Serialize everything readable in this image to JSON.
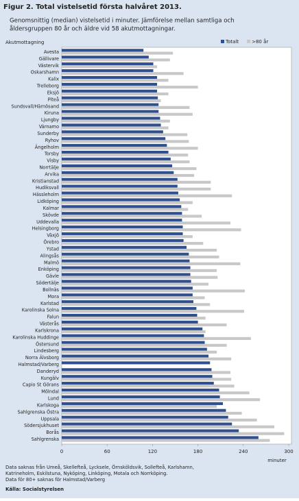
{
  "chart_data": {
    "type": "hbar",
    "title": "Figur 2. Total vistelsetid första halvåret 2013.",
    "subtitle": [
      "Genomsnittig (median) vistelsetid i minuter. Jämförelse mellan samtliga och",
      "åldersgruppen 80 år och äldre vid 58 akutmottagningar."
    ],
    "y_label": "Akutmottagning",
    "x_label": "minuter",
    "categories": [
      "Avesta",
      "Gällivare",
      "Västervik",
      "Oskarshamn",
      "Kalix",
      "Trelleborg",
      "Eksjö",
      "Piteå",
      "Sundsvall/Härnösand",
      "Kiruna",
      "Ljungby",
      "Värnamo",
      "Sunderby",
      "Ryhov",
      "Ängelholm",
      "Torsby",
      "Visby",
      "Norrtälje",
      "Arvika",
      "Kristianstad",
      "Hudiksvall",
      "Hässleholm",
      "Lidköping",
      "Kalmar",
      "Skövde",
      "Uddevalla",
      "Helsingborg",
      "Växjö",
      "Örebro",
      "Ystad",
      "Alingsås",
      "Malmö",
      "Enköping",
      "Gävle",
      "Södertälje",
      "Bollnäs",
      "Mora",
      "Karlstad",
      "Karolinska Solna",
      "Falun",
      "Västerås",
      "Karlskrona",
      "Karolinska Huddinge",
      "Östersund",
      "Lindesberg",
      "Norra Älvsborg",
      "Halmstad/Varberg",
      "Danderyd",
      "Kungälv",
      "Capio St Görans",
      "Mölndal",
      "Lund",
      "Karlskoga",
      "Sahlgrenska Östra",
      "Uppsala",
      "Södersjukhuset",
      "Borås",
      "Sahlgrenska"
    ],
    "series": [
      {
        "name": "Totalt",
        "color": "#2f4f8f",
        "values": [
          108,
          115,
          121,
          121,
          126,
          126,
          126,
          127,
          128,
          128,
          130,
          131,
          134,
          137,
          139,
          141,
          144,
          146,
          148,
          153,
          153,
          154,
          156,
          158,
          159,
          159,
          160,
          160,
          161,
          165,
          168,
          169,
          170,
          170,
          171,
          173,
          173,
          174,
          178,
          179,
          180,
          186,
          188,
          189,
          192,
          194,
          196,
          198,
          199,
          201,
          208,
          209,
          213,
          217,
          220,
          225,
          234,
          260
        ]
      },
      {
        "name": ">80 år",
        "color": "#c8c8c8",
        "values": [
          147,
          143,
          126,
          161,
          141,
          180,
          141,
          131,
          169,
          173,
          143,
          141,
          166,
          168,
          180,
          167,
          169,
          178,
          175,
          197,
          197,
          225,
          173,
          167,
          185,
          223,
          237,
          173,
          187,
          205,
          208,
          236,
          205,
          206,
          194,
          242,
          189,
          196,
          241,
          190,
          218,
          190,
          250,
          218,
          205,
          224,
          null,
          223,
          224,
          228,
          248,
          262,
          205,
          238,
          258,
          281,
          294,
          275
        ]
      }
    ],
    "xlim": [
      0,
      300
    ],
    "xticks": [
      0,
      60,
      120,
      180,
      240,
      300
    ],
    "grid": false,
    "legend": "top-right",
    "notes": [
      "Data saknas från Umeå, Skellefteå, Lycksele, Örnsköldsvik, Sollefteå, Karlshamn,",
      "Katrineholm, Eskilstuna, Nyköping, Linköping, Motala och Norrköping.",
      "Data för 80+ saknas för Halmstad/Varberg"
    ],
    "source": "Källa: Socialstyrelsen"
  }
}
